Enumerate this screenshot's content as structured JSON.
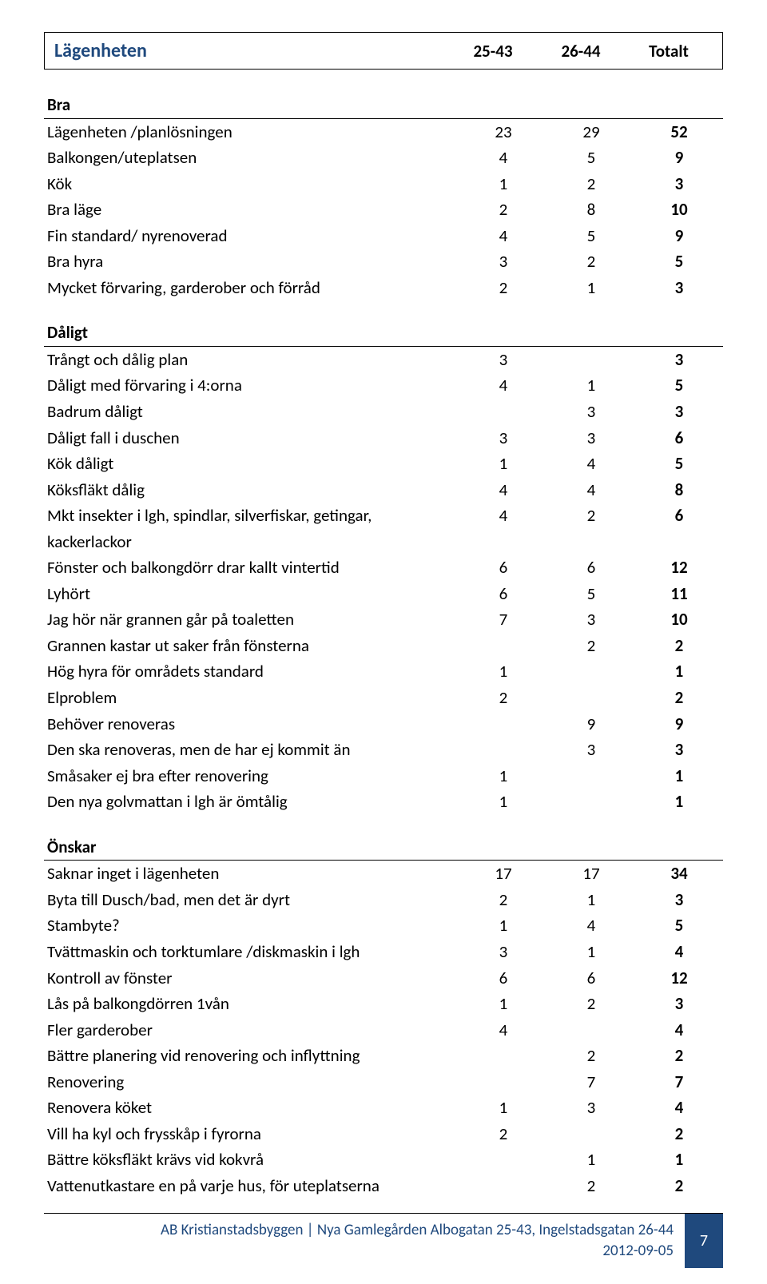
{
  "header": {
    "title": "Lägenheten",
    "col1": "25-43",
    "col2": "26-44",
    "col3": "Totalt"
  },
  "sections": [
    {
      "name": "Bra",
      "rows": [
        {
          "label": "Lägenheten /planlösningen",
          "c1": "23",
          "c2": "29",
          "c3": "52"
        },
        {
          "label": "Balkongen/uteplatsen",
          "c1": "4",
          "c2": "5",
          "c3": "9"
        },
        {
          "label": "Kök",
          "c1": "1",
          "c2": "2",
          "c3": "3"
        },
        {
          "label": "Bra läge",
          "c1": "2",
          "c2": "8",
          "c3": "10"
        },
        {
          "label": "Fin standard/ nyrenoverad",
          "c1": "4",
          "c2": "5",
          "c3": "9"
        },
        {
          "label": "Bra hyra",
          "c1": "3",
          "c2": "2",
          "c3": "5"
        },
        {
          "label": "Mycket förvaring, garderober och förråd",
          "c1": "2",
          "c2": "1",
          "c3": "3"
        }
      ]
    },
    {
      "name": "Dåligt",
      "rows": [
        {
          "label": "Trångt och dålig plan",
          "c1": "3",
          "c2": "",
          "c3": "3"
        },
        {
          "label": "Dåligt med förvaring i 4:orna",
          "c1": "4",
          "c2": "1",
          "c3": "5"
        },
        {
          "label": "Badrum dåligt",
          "c1": "",
          "c2": "3",
          "c3": "3"
        },
        {
          "label": "Dåligt fall i duschen",
          "c1": "3",
          "c2": "3",
          "c3": "6"
        },
        {
          "label": "Kök dåligt",
          "c1": "1",
          "c2": "4",
          "c3": "5"
        },
        {
          "label": "Köksfläkt dålig",
          "c1": "4",
          "c2": "4",
          "c3": "8"
        },
        {
          "label": "Mkt insekter i lgh, spindlar, silverfiskar, getingar, kackerlackor",
          "c1": "4",
          "c2": "2",
          "c3": "6"
        },
        {
          "label": "Fönster och balkongdörr drar kallt vintertid",
          "c1": "6",
          "c2": "6",
          "c3": "12"
        },
        {
          "label": "Lyhört",
          "c1": "6",
          "c2": "5",
          "c3": "11"
        },
        {
          "label": "Jag hör när grannen går på toaletten",
          "c1": "7",
          "c2": "3",
          "c3": "10"
        },
        {
          "label": "Grannen kastar ut saker från fönsterna",
          "c1": "",
          "c2": "2",
          "c3": "2"
        },
        {
          "label": "Hög hyra för områdets standard",
          "c1": "1",
          "c2": "",
          "c3": "1"
        },
        {
          "label": "Elproblem",
          "c1": "2",
          "c2": "",
          "c3": "2"
        },
        {
          "label": "Behöver renoveras",
          "c1": "",
          "c2": "9",
          "c3": "9"
        },
        {
          "label": "Den ska renoveras, men de har ej kommit än",
          "c1": "",
          "c2": "3",
          "c3": "3"
        },
        {
          "label": "Småsaker ej bra efter renovering",
          "c1": "1",
          "c2": "",
          "c3": "1"
        },
        {
          "label": "Den nya golvmattan i lgh är ömtålig",
          "c1": "1",
          "c2": "",
          "c3": "1"
        }
      ]
    },
    {
      "name": "Önskar",
      "rows": [
        {
          "label": "Saknar inget i lägenheten",
          "c1": "17",
          "c2": "17",
          "c3": "34"
        },
        {
          "label": "Byta till Dusch/bad, men det är dyrt",
          "c1": "2",
          "c2": "1",
          "c3": "3"
        },
        {
          "label": "Stambyte?",
          "c1": "1",
          "c2": "4",
          "c3": "5"
        },
        {
          "label": "Tvättmaskin och torktumlare /diskmaskin i lgh",
          "c1": "3",
          "c2": "1",
          "c3": "4"
        },
        {
          "label": "Kontroll av fönster",
          "c1": "6",
          "c2": "6",
          "c3": "12"
        },
        {
          "label": "Lås på balkongdörren 1vån",
          "c1": "1",
          "c2": "2",
          "c3": "3"
        },
        {
          "label": "Fler garderober",
          "c1": "4",
          "c2": "",
          "c3": "4"
        },
        {
          "label": "Bättre planering vid renovering och inflyttning",
          "c1": "",
          "c2": "2",
          "c3": "2"
        },
        {
          "label": "Renovering",
          "c1": "",
          "c2": "7",
          "c3": "7"
        },
        {
          "label": "Renovera köket",
          "c1": "1",
          "c2": "3",
          "c3": "4"
        },
        {
          "label": "Vill ha kyl och frysskåp i fyrorna",
          "c1": "2",
          "c2": "",
          "c3": "2"
        },
        {
          "label": "Bättre köksfläkt krävs vid kokvrå",
          "c1": "",
          "c2": "1",
          "c3": "1"
        },
        {
          "label": "Vattenutkastare en på varje hus, för uteplatserna",
          "c1": "",
          "c2": "2",
          "c3": "2"
        }
      ]
    }
  ],
  "footer": {
    "line1": "AB Kristianstadsbyggen | Nya Gamlegården Albogatan 25-43, Ingelstadsgatan 26-44",
    "line2": "2012-09-05",
    "page": "7"
  }
}
